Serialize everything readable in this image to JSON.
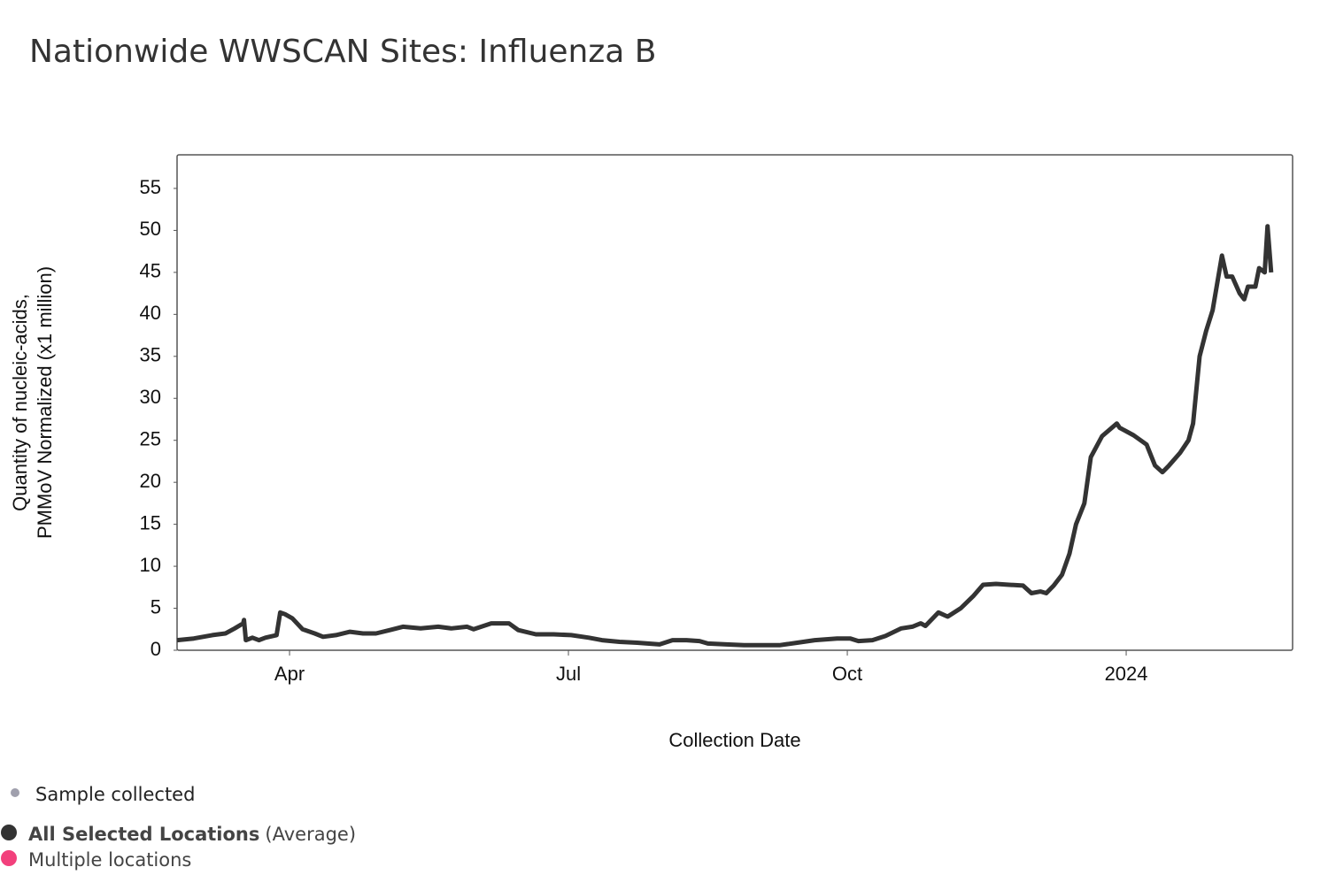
{
  "chart_data": {
    "type": "line",
    "title": "Nationwide WWSCAN Sites: Influenza B",
    "y_label_lines": [
      "Quantity of nucleic-acids,",
      "PMMoV Normalized (x1 million)"
    ],
    "x_label": "Collection Date",
    "xlim": [
      2.79,
      14.79
    ],
    "xticks": [
      {
        "value": 4,
        "label": "Apr"
      },
      {
        "value": 7,
        "label": "Jul"
      },
      {
        "value": 10,
        "label": "Oct"
      },
      {
        "value": 13,
        "label": "2024"
      }
    ],
    "ylim": [
      0,
      59
    ],
    "yticks": [
      0,
      5,
      10,
      15,
      20,
      25,
      30,
      35,
      40,
      45,
      50,
      55
    ],
    "x": [
      2.79,
      2.97,
      3.17,
      3.31,
      3.41,
      3.5,
      3.51,
      3.53,
      3.6,
      3.67,
      3.74,
      3.86,
      3.9,
      3.95,
      4.03,
      4.14,
      4.27,
      4.36,
      4.5,
      4.65,
      4.79,
      4.93,
      5.08,
      5.22,
      5.41,
      5.6,
      5.74,
      5.91,
      5.98,
      6.17,
      6.36,
      6.46,
      6.65,
      6.84,
      7.03,
      7.22,
      7.36,
      7.55,
      7.74,
      7.98,
      8.12,
      8.27,
      8.41,
      8.5,
      8.7,
      8.89,
      9.08,
      9.27,
      9.46,
      9.65,
      9.89,
      10.03,
      10.12,
      10.27,
      10.41,
      10.58,
      10.7,
      10.79,
      10.84,
      10.98,
      11.08,
      11.22,
      11.36,
      11.46,
      11.6,
      11.74,
      11.89,
      11.98,
      12.08,
      12.14,
      12.22,
      12.31,
      12.39,
      12.46,
      12.55,
      12.62,
      12.74,
      12.9,
      12.93,
      13.08,
      13.22,
      13.31,
      13.39,
      13.46,
      13.58,
      13.67,
      13.72,
      13.79,
      13.86,
      13.93,
      14.03,
      14.08,
      14.14,
      14.22,
      14.27,
      14.31,
      14.39,
      14.43,
      14.49,
      14.52,
      14.56
    ],
    "series": [
      {
        "name": "All Selected Locations",
        "name_suffix": "(Average)",
        "color": "#333333",
        "values": [
          1.2,
          1.4,
          1.8,
          2.0,
          2.6,
          3.2,
          3.6,
          1.2,
          1.5,
          1.2,
          1.5,
          1.8,
          4.5,
          4.3,
          3.8,
          2.5,
          2.0,
          1.6,
          1.8,
          2.2,
          2.0,
          2.0,
          2.4,
          2.8,
          2.6,
          2.8,
          2.6,
          2.8,
          2.5,
          3.2,
          3.2,
          2.4,
          1.9,
          1.9,
          1.8,
          1.5,
          1.2,
          1.0,
          0.9,
          0.7,
          1.2,
          1.2,
          1.1,
          0.8,
          0.7,
          0.6,
          0.6,
          0.6,
          0.9,
          1.2,
          1.4,
          1.4,
          1.1,
          1.2,
          1.7,
          2.6,
          2.8,
          3.2,
          2.9,
          4.5,
          4.0,
          5.0,
          6.5,
          7.8,
          7.9,
          7.8,
          7.7,
          6.8,
          7.0,
          6.8,
          7.7,
          9.0,
          11.5,
          15,
          17.5,
          23,
          25.5,
          27,
          26.5,
          25.6,
          24.5,
          22,
          21.2,
          22,
          23.5,
          25,
          27,
          35,
          38,
          40.5,
          47,
          44.5,
          44.5,
          42.5,
          41.8,
          43.3,
          43.3,
          45.5,
          45,
          50.5,
          45
        ]
      }
    ],
    "legend": [
      {
        "label": "Sample collected",
        "color": "#a0a0ad"
      },
      {
        "label": "Multiple locations",
        "color": "#f2407c"
      }
    ]
  }
}
